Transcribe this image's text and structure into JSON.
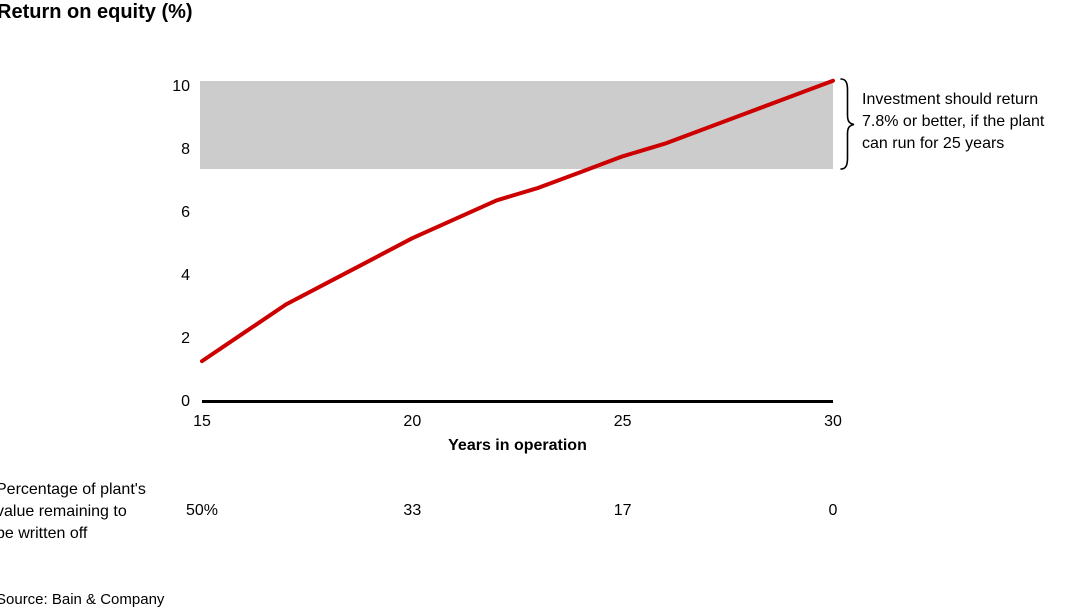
{
  "page": {
    "title": "Return on equity (%)",
    "source": "Source: Bain & Company"
  },
  "chart_data": {
    "type": "line",
    "title": "Return on equity (%)",
    "xlabel": "Years in operation",
    "ylabel": "Return on equity (%)",
    "xlim": [
      15,
      30
    ],
    "ylim": [
      0,
      10.3
    ],
    "grid": false,
    "legend": "none",
    "xticks": [
      "15",
      "20",
      "25",
      "30"
    ],
    "xtick_years": [
      15,
      20,
      25,
      30
    ],
    "yticks": [
      "0",
      "2",
      "4",
      "6",
      "8",
      "10"
    ],
    "ytick_values": [
      0,
      2,
      4,
      6,
      8,
      10
    ],
    "x": [
      15,
      16,
      17,
      18,
      19,
      20,
      21,
      22,
      23,
      24,
      25,
      26,
      27,
      28,
      29,
      30
    ],
    "series": [
      {
        "name": "Return on equity",
        "color": "#cc0000",
        "values": [
          1.3,
          2.2,
          3.1,
          3.8,
          4.5,
          5.2,
          5.8,
          6.4,
          6.8,
          7.3,
          7.8,
          8.2,
          8.7,
          9.2,
          9.7,
          10.2
        ]
      }
    ],
    "target_band": {
      "from_pct": 7.4,
      "to_pct": 10.2,
      "color": "#cccccc"
    },
    "annotation": {
      "lines": [
        "Investment should return",
        "7.8% or better, if the plant",
        "can run for 25 years"
      ]
    },
    "secondary_row": {
      "label_lines": [
        "Percentage of plant's",
        "value remaining to",
        "be written off"
      ],
      "years": [
        15,
        20,
        25,
        30
      ],
      "values": [
        "50%",
        "33",
        "17",
        "0"
      ]
    }
  }
}
